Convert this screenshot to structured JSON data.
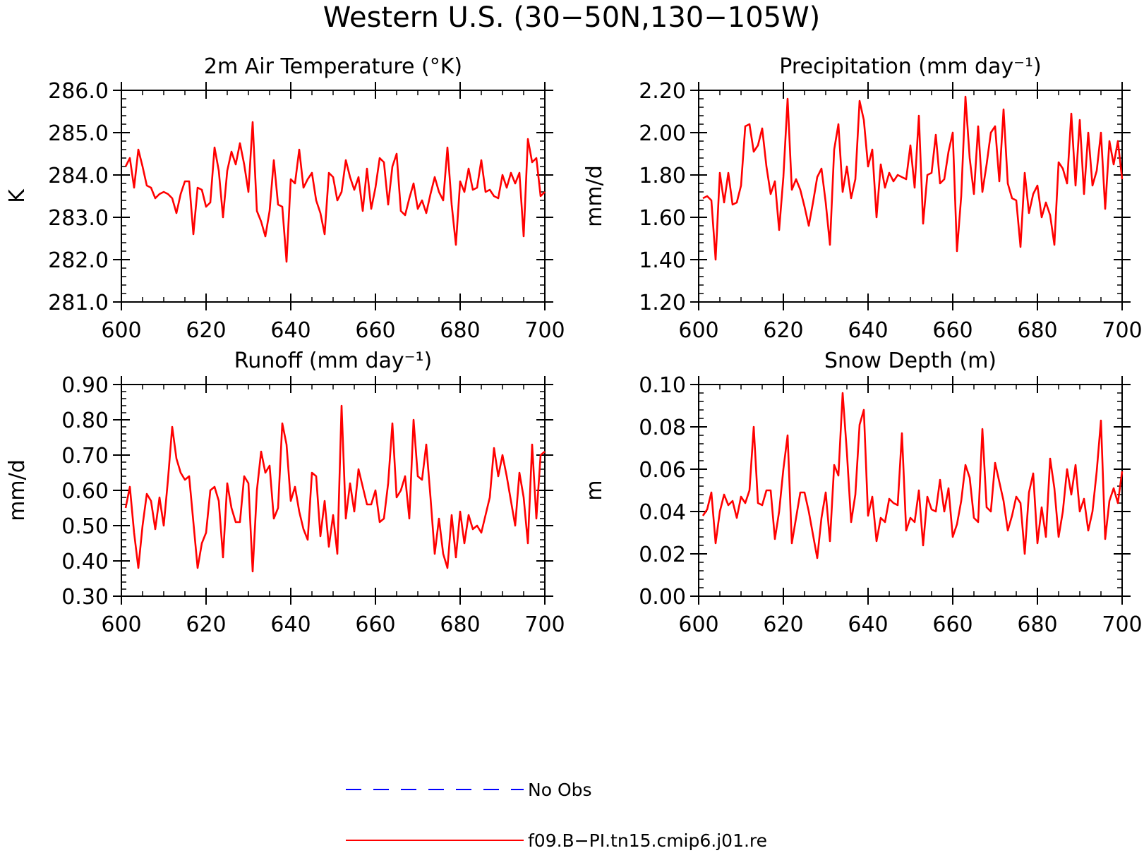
{
  "figure": {
    "title": "Western U.S. (30−50N,130−105W)",
    "legend": [
      {
        "label": "No Obs",
        "color": "#0000ff",
        "style": "dashed"
      },
      {
        "label": "f09.B−PI.tn15.cmip6.j01.re",
        "color": "#ff0000",
        "style": "solid"
      }
    ]
  },
  "chart_data": [
    {
      "type": "line",
      "title": "2m Air Temperature (°K)",
      "ylabel": "K",
      "xlim": [
        600,
        700
      ],
      "ylim": [
        281.0,
        286.0
      ],
      "xticks": [
        600,
        620,
        640,
        660,
        680,
        700
      ],
      "xtick_labels": [
        "600",
        "620",
        "640",
        "660",
        "680",
        "700"
      ],
      "yticks": [
        281.0,
        282.0,
        283.0,
        284.0,
        285.0,
        286.0
      ],
      "ytick_labels": [
        "281.0",
        "282.0",
        "283.0",
        "284.0",
        "285.0",
        "286.0"
      ],
      "series": [
        {
          "name": "f09.B−PI.tn15.cmip6.j01.re",
          "color": "#ff0000",
          "x": [
            601,
            602,
            603,
            604,
            605,
            606,
            607,
            608,
            609,
            610,
            611,
            612,
            613,
            614,
            615,
            616,
            617,
            618,
            619,
            620,
            621,
            622,
            623,
            624,
            625,
            626,
            627,
            628,
            629,
            630,
            631,
            632,
            633,
            634,
            635,
            636,
            637,
            638,
            639,
            640,
            641,
            642,
            643,
            644,
            645,
            646,
            647,
            648,
            649,
            650,
            651,
            652,
            653,
            654,
            655,
            656,
            657,
            658,
            659,
            660,
            661,
            662,
            663,
            664,
            665,
            666,
            667,
            668,
            669,
            670,
            671,
            672,
            673,
            674,
            675,
            676,
            677,
            678,
            679,
            680,
            681,
            682,
            683,
            684,
            685,
            686,
            687,
            688,
            689,
            690,
            691,
            692,
            693,
            694,
            695,
            696,
            697,
            698,
            699,
            700
          ],
          "y": [
            284.2,
            284.4,
            283.7,
            284.6,
            284.2,
            283.75,
            283.7,
            283.45,
            283.55,
            283.6,
            283.55,
            283.45,
            283.1,
            283.55,
            283.85,
            283.85,
            282.6,
            283.7,
            283.65,
            283.25,
            283.35,
            284.65,
            284.1,
            283.0,
            284.1,
            284.55,
            284.25,
            284.75,
            284.25,
            283.6,
            285.25,
            283.15,
            282.9,
            282.55,
            283.15,
            284.35,
            283.3,
            283.25,
            281.95,
            283.9,
            283.8,
            284.6,
            283.7,
            283.9,
            284.05,
            283.4,
            283.1,
            282.6,
            284.05,
            283.95,
            283.4,
            283.6,
            284.35,
            283.95,
            283.65,
            283.95,
            283.15,
            284.15,
            283.2,
            283.7,
            284.4,
            284.3,
            283.3,
            284.2,
            284.5,
            283.15,
            283.05,
            283.45,
            283.8,
            283.2,
            283.4,
            283.1,
            283.55,
            283.95,
            283.6,
            283.4,
            284.65,
            283.3,
            282.35,
            283.85,
            283.6,
            284.15,
            283.65,
            283.7,
            284.35,
            283.6,
            283.65,
            283.5,
            283.45,
            284.0,
            283.7,
            284.05,
            283.8,
            284.05,
            282.55,
            284.85,
            284.3,
            284.4,
            283.5,
            283.6
          ]
        }
      ]
    },
    {
      "type": "line",
      "title": "Precipitation (mm day⁻¹)",
      "ylabel": "mm/d",
      "xlim": [
        600,
        700
      ],
      "ylim": [
        1.2,
        2.2
      ],
      "xticks": [
        600,
        620,
        640,
        660,
        680,
        700
      ],
      "xtick_labels": [
        "600",
        "620",
        "640",
        "660",
        "680",
        "700"
      ],
      "yticks": [
        1.2,
        1.4,
        1.6,
        1.8,
        2.0,
        2.2
      ],
      "ytick_labels": [
        "1.20",
        "1.40",
        "1.60",
        "1.80",
        "2.00",
        "2.20"
      ],
      "series": [
        {
          "name": "f09.B−PI.tn15.cmip6.j01.re",
          "color": "#ff0000",
          "x": [
            601,
            602,
            603,
            604,
            605,
            606,
            607,
            608,
            609,
            610,
            611,
            612,
            613,
            614,
            615,
            616,
            617,
            618,
            619,
            620,
            621,
            622,
            623,
            624,
            625,
            626,
            627,
            628,
            629,
            630,
            631,
            632,
            633,
            634,
            635,
            636,
            637,
            638,
            639,
            640,
            641,
            642,
            643,
            644,
            645,
            646,
            647,
            648,
            649,
            650,
            651,
            652,
            653,
            654,
            655,
            656,
            657,
            658,
            659,
            660,
            661,
            662,
            663,
            664,
            665,
            666,
            667,
            668,
            669,
            670,
            671,
            672,
            673,
            674,
            675,
            676,
            677,
            678,
            679,
            680,
            681,
            682,
            683,
            684,
            685,
            686,
            687,
            688,
            689,
            690,
            691,
            692,
            693,
            694,
            695,
            696,
            697,
            698,
            699,
            700
          ],
          "y": [
            1.69,
            1.7,
            1.68,
            1.4,
            1.81,
            1.67,
            1.81,
            1.66,
            1.67,
            1.75,
            2.03,
            2.04,
            1.91,
            1.94,
            2.02,
            1.84,
            1.71,
            1.77,
            1.54,
            1.79,
            2.16,
            1.73,
            1.78,
            1.73,
            1.65,
            1.56,
            1.67,
            1.79,
            1.83,
            1.67,
            1.47,
            1.92,
            2.04,
            1.72,
            1.84,
            1.69,
            1.78,
            2.15,
            2.06,
            1.84,
            1.92,
            1.6,
            1.85,
            1.74,
            1.81,
            1.77,
            1.8,
            1.79,
            1.78,
            1.94,
            1.74,
            2.08,
            1.57,
            1.8,
            1.81,
            1.99,
            1.76,
            1.78,
            1.91,
            2.0,
            1.44,
            1.7,
            2.17,
            1.88,
            1.71,
            2.03,
            1.72,
            1.85,
            2.0,
            2.03,
            1.77,
            2.11,
            1.76,
            1.69,
            1.68,
            1.46,
            1.81,
            1.62,
            1.71,
            1.75,
            1.6,
            1.67,
            1.61,
            1.47,
            1.86,
            1.83,
            1.76,
            2.09,
            1.75,
            2.06,
            1.71,
            2.0,
            1.75,
            1.82,
            2.0,
            1.64,
            1.96,
            1.85,
            1.96,
            1.78
          ]
        }
      ]
    },
    {
      "type": "line",
      "title": "Runoff (mm day⁻¹)",
      "ylabel": "mm/d",
      "xlim": [
        600,
        700
      ],
      "ylim": [
        0.3,
        0.9
      ],
      "xticks": [
        600,
        620,
        640,
        660,
        680,
        700
      ],
      "xtick_labels": [
        "600",
        "620",
        "640",
        "660",
        "680",
        "700"
      ],
      "yticks": [
        0.3,
        0.4,
        0.5,
        0.6,
        0.7,
        0.8,
        0.9
      ],
      "ytick_labels": [
        "0.30",
        "0.40",
        "0.50",
        "0.60",
        "0.70",
        "0.80",
        "0.90"
      ],
      "series": [
        {
          "name": "f09.B−PI.tn15.cmip6.j01.re",
          "color": "#ff0000",
          "x": [
            601,
            602,
            603,
            604,
            605,
            606,
            607,
            608,
            609,
            610,
            611,
            612,
            613,
            614,
            615,
            616,
            617,
            618,
            619,
            620,
            621,
            622,
            623,
            624,
            625,
            626,
            627,
            628,
            629,
            630,
            631,
            632,
            633,
            634,
            635,
            636,
            637,
            638,
            639,
            640,
            641,
            642,
            643,
            644,
            645,
            646,
            647,
            648,
            649,
            650,
            651,
            652,
            653,
            654,
            655,
            656,
            657,
            658,
            659,
            660,
            661,
            662,
            663,
            664,
            665,
            666,
            667,
            668,
            669,
            670,
            671,
            672,
            673,
            674,
            675,
            676,
            677,
            678,
            679,
            680,
            681,
            682,
            683,
            684,
            685,
            686,
            687,
            688,
            689,
            690,
            691,
            692,
            693,
            694,
            695,
            696,
            697,
            698,
            699,
            700
          ],
          "y": [
            0.55,
            0.61,
            0.48,
            0.38,
            0.5,
            0.59,
            0.57,
            0.49,
            0.58,
            0.5,
            0.63,
            0.78,
            0.69,
            0.65,
            0.63,
            0.64,
            0.51,
            0.38,
            0.45,
            0.48,
            0.6,
            0.61,
            0.57,
            0.41,
            0.62,
            0.55,
            0.51,
            0.51,
            0.64,
            0.62,
            0.37,
            0.6,
            0.71,
            0.65,
            0.67,
            0.52,
            0.55,
            0.79,
            0.73,
            0.57,
            0.61,
            0.54,
            0.49,
            0.46,
            0.65,
            0.64,
            0.47,
            0.57,
            0.44,
            0.53,
            0.42,
            0.84,
            0.52,
            0.62,
            0.54,
            0.66,
            0.61,
            0.56,
            0.56,
            0.6,
            0.51,
            0.52,
            0.62,
            0.79,
            0.58,
            0.6,
            0.64,
            0.52,
            0.8,
            0.64,
            0.63,
            0.73,
            0.58,
            0.42,
            0.52,
            0.42,
            0.38,
            0.53,
            0.41,
            0.54,
            0.45,
            0.53,
            0.49,
            0.5,
            0.48,
            0.53,
            0.58,
            0.72,
            0.64,
            0.7,
            0.64,
            0.57,
            0.5,
            0.65,
            0.58,
            0.45,
            0.73,
            0.52,
            0.7,
            0.71
          ]
        }
      ]
    },
    {
      "type": "line",
      "title": "Snow Depth (m)",
      "ylabel": "m",
      "xlim": [
        600,
        700
      ],
      "ylim": [
        0.0,
        0.1
      ],
      "xticks": [
        600,
        620,
        640,
        660,
        680,
        700
      ],
      "xtick_labels": [
        "600",
        "620",
        "640",
        "660",
        "680",
        "700"
      ],
      "yticks": [
        0.0,
        0.02,
        0.04,
        0.06,
        0.08,
        0.1
      ],
      "ytick_labels": [
        "0.00",
        "0.02",
        "0.04",
        "0.06",
        "0.08",
        "0.10"
      ],
      "series": [
        {
          "name": "f09.B−PI.tn15.cmip6.j01.re",
          "color": "#ff0000",
          "x": [
            601,
            602,
            603,
            604,
            605,
            606,
            607,
            608,
            609,
            610,
            611,
            612,
            613,
            614,
            615,
            616,
            617,
            618,
            619,
            620,
            621,
            622,
            623,
            624,
            625,
            626,
            627,
            628,
            629,
            630,
            631,
            632,
            633,
            634,
            635,
            636,
            637,
            638,
            639,
            640,
            641,
            642,
            643,
            644,
            645,
            646,
            647,
            648,
            649,
            650,
            651,
            652,
            653,
            654,
            655,
            656,
            657,
            658,
            659,
            660,
            661,
            662,
            663,
            664,
            665,
            666,
            667,
            668,
            669,
            670,
            671,
            672,
            673,
            674,
            675,
            676,
            677,
            678,
            679,
            680,
            681,
            682,
            683,
            684,
            685,
            686,
            687,
            688,
            689,
            690,
            691,
            692,
            693,
            694,
            695,
            696,
            697,
            698,
            699,
            700
          ],
          "y": [
            0.038,
            0.041,
            0.049,
            0.025,
            0.04,
            0.048,
            0.043,
            0.045,
            0.037,
            0.047,
            0.044,
            0.05,
            0.08,
            0.044,
            0.043,
            0.05,
            0.05,
            0.027,
            0.04,
            0.06,
            0.076,
            0.025,
            0.037,
            0.049,
            0.049,
            0.04,
            0.029,
            0.018,
            0.037,
            0.049,
            0.026,
            0.062,
            0.057,
            0.096,
            0.068,
            0.035,
            0.048,
            0.081,
            0.088,
            0.038,
            0.047,
            0.026,
            0.037,
            0.035,
            0.046,
            0.044,
            0.043,
            0.077,
            0.031,
            0.037,
            0.035,
            0.05,
            0.024,
            0.047,
            0.041,
            0.04,
            0.055,
            0.04,
            0.051,
            0.028,
            0.034,
            0.045,
            0.062,
            0.056,
            0.037,
            0.035,
            0.079,
            0.042,
            0.04,
            0.063,
            0.054,
            0.045,
            0.031,
            0.038,
            0.047,
            0.044,
            0.02,
            0.049,
            0.058,
            0.025,
            0.042,
            0.028,
            0.065,
            0.051,
            0.028,
            0.04,
            0.06,
            0.048,
            0.062,
            0.04,
            0.046,
            0.031,
            0.04,
            0.059,
            0.083,
            0.027,
            0.045,
            0.051,
            0.044,
            0.059
          ]
        }
      ]
    }
  ]
}
